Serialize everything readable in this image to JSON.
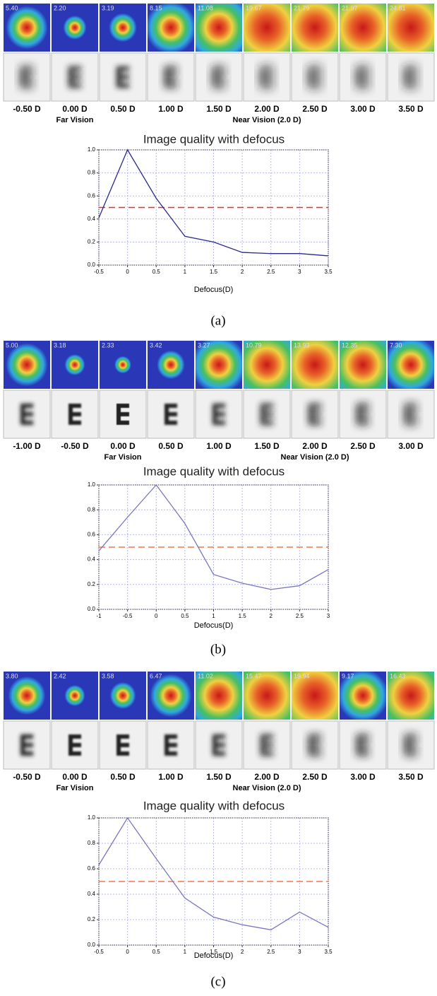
{
  "panels": [
    {
      "psf_values": [
        "5.40",
        "2.20",
        "3.19",
        "8.15",
        "11.08",
        "19.67",
        "21.79",
        "21.97",
        "24.81"
      ],
      "defocus_labels": [
        "-0.50 D",
        "0.00 D",
        "0.50 D",
        "1.00 D",
        "1.50 D",
        "2.00 D",
        "2.50 D",
        "3.00 D",
        "3.50 D"
      ],
      "far_label": "Far Vision",
      "near_label": "Near Vision (2.0 D)",
      "caption": "(a)"
    },
    {
      "psf_values": [
        "5.00",
        "3.18",
        "2.33",
        "3.42",
        "3.27",
        "10.79",
        "13.93",
        "12.35",
        "7.30"
      ],
      "defocus_labels": [
        "-1.00 D",
        "-0.50 D",
        "0.00 D",
        "0.50 D",
        "1.00 D",
        "1.50 D",
        "2.00 D",
        "2.50 D",
        "3.00 D"
      ],
      "far_label": "Far Vision",
      "near_label": "Near Vision (2.0 D)",
      "caption": "(b)"
    },
    {
      "psf_values": [
        "3.80",
        "2.42",
        "3.58",
        "6.47",
        "11.02",
        "15.47",
        "19.94",
        "9.17",
        "16.43"
      ],
      "defocus_labels": [
        "-0.50 D",
        "0.00 D",
        "0.50 D",
        "1.00 D",
        "1.50 D",
        "2.00 D",
        "2.50 D",
        "3.00 D",
        "3.50 D"
      ],
      "far_label": "Far Vision",
      "near_label": "Near Vision (2.0 D)",
      "caption": "(c)"
    }
  ],
  "chart_data": [
    {
      "type": "line",
      "title": "Image quality with defocus",
      "x_label": "Defocus(D)",
      "x": [
        -0.5,
        0,
        0.5,
        1,
        1.5,
        2,
        2.5,
        3,
        3.5
      ],
      "values": [
        0.41,
        1.0,
        0.58,
        0.25,
        0.2,
        0.11,
        0.1,
        0.1,
        0.08
      ],
      "color": "#2a2a90",
      "reference_line": {
        "value": 0.5,
        "color": "#e03030"
      },
      "xlim": [
        -0.5,
        3.5
      ],
      "ylim": [
        0,
        1
      ],
      "xticks": [
        -0.5,
        0,
        0.5,
        1,
        1.5,
        2,
        2.5,
        3,
        3.5
      ],
      "yticks": [
        {
          "value": 0,
          "label": "0.0"
        },
        {
          "value": 0.2,
          "label": "0.2"
        },
        {
          "value": 0.4,
          "label": "0.4"
        },
        {
          "value": 0.6,
          "label": "0.6"
        },
        {
          "value": 0.8,
          "label": "0.8"
        },
        {
          "value": 1,
          "label": "1.0"
        }
      ],
      "grid": true
    },
    {
      "type": "line",
      "title": "Image quality with defocus",
      "x_label": "Defocus(D)",
      "x": [
        -1,
        -0.5,
        0,
        0.5,
        1,
        1.5,
        2,
        2.5,
        3
      ],
      "values": [
        0.47,
        0.74,
        1.0,
        0.69,
        0.28,
        0.21,
        0.16,
        0.19,
        0.32
      ],
      "color": "#7a76c0",
      "reference_line": {
        "value": 0.5,
        "color": "#f07850"
      },
      "xlim": [
        -1,
        3
      ],
      "ylim": [
        0,
        1
      ],
      "xticks": [
        -1,
        -0.5,
        0,
        0.5,
        1,
        1.5,
        2,
        2.5,
        3
      ],
      "yticks": [
        {
          "value": 0,
          "label": "0.0"
        },
        {
          "value": 0.2,
          "label": "0.2"
        },
        {
          "value": 0.4,
          "label": "0.4"
        },
        {
          "value": 0.6,
          "label": "0.6"
        },
        {
          "value": 0.8,
          "label": "0.8"
        },
        {
          "value": 1,
          "label": "1.0"
        }
      ],
      "grid": true
    },
    {
      "type": "line",
      "title": "Image quality with defocus",
      "x_label": "Defocus(D)",
      "x": [
        -0.5,
        0,
        0.5,
        1,
        1.5,
        2,
        2.5,
        3,
        3.5
      ],
      "values": [
        0.63,
        1.0,
        0.68,
        0.37,
        0.22,
        0.16,
        0.12,
        0.26,
        0.14
      ],
      "color": "#7a76c0",
      "reference_line": {
        "value": 0.5,
        "color": "#f07850"
      },
      "xlim": [
        -0.5,
        3.5
      ],
      "ylim": [
        0,
        1
      ],
      "xticks": [
        -0.5,
        0,
        0.5,
        1,
        1.5,
        2,
        2.5,
        3,
        3.5
      ],
      "yticks": [
        {
          "value": 0,
          "label": "0.0"
        },
        {
          "value": 0.2,
          "label": "0.2"
        },
        {
          "value": 0.4,
          "label": "0.4"
        },
        {
          "value": 0.6,
          "label": "0.6"
        },
        {
          "value": 0.8,
          "label": "0.8"
        },
        {
          "value": 1,
          "label": "1.0"
        }
      ],
      "grid": true
    }
  ]
}
